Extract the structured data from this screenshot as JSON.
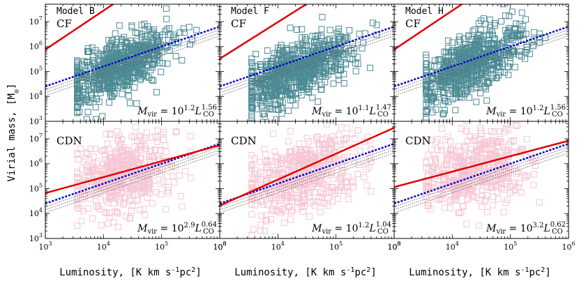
{
  "figure": {
    "ylabel_prefix": "Virial mass, [M",
    "ylabel_sub": "⊙",
    "ylabel_suffix": "]",
    "xlabel_prefix": "Luminosity, [K km s",
    "xlabel_sup1": "-1",
    "xlabel_mid": "pc",
    "xlabel_sup2": "2",
    "xlabel_suffix": "]"
  },
  "chart_data": [
    {
      "type": "scatter",
      "title": "Model B",
      "tag": "CF",
      "series_color": "#4d8a94",
      "fit": {
        "intercept": 1.2,
        "slope": 1.56,
        "label_pre": "M",
        "label_sub": "vir",
        "label_eq": " = 10",
        "label_exp": "1.2",
        "label_L": "L",
        "label_Lsub": "CO",
        "label_Lsup": "1.56"
      },
      "xlim": [
        1000,
        1000000
      ],
      "ylim": [
        1000,
        50000000
      ],
      "xticks": [
        "10",
        "10",
        "10",
        "10"
      ],
      "xtick_exps": [
        "3",
        "4",
        "5",
        "6"
      ],
      "yticks": [
        "10",
        "10",
        "10",
        "10",
        "10"
      ],
      "ytick_exps": [
        "3",
        "4",
        "5",
        "6",
        "7"
      ],
      "cloud": {
        "x_center": 4.25,
        "x_spread": 0.45,
        "y_center": 5.2,
        "y_spread": 0.55,
        "slope": 1.1,
        "x_min": 3.55,
        "x_max": 5.6,
        "count": 700
      }
    },
    {
      "type": "scatter",
      "title": "Model F",
      "tag": "CF",
      "series_color": "#4d8a94",
      "fit": {
        "intercept": 1.1,
        "slope": 1.47,
        "label_pre": "M",
        "label_sub": "vir",
        "label_eq": " = 10",
        "label_exp": "1.1",
        "label_L": "L",
        "label_Lsub": "CO",
        "label_Lsup": "1.47"
      },
      "xlim": [
        1000,
        1000000
      ],
      "ylim": [
        1000,
        50000000
      ],
      "xticks": [
        "10",
        "10",
        "10",
        "10"
      ],
      "xtick_exps": [
        "3",
        "4",
        "5",
        "6"
      ],
      "yticks": [
        "10",
        "10",
        "10",
        "10",
        "10"
      ],
      "ytick_exps": [
        "3",
        "4",
        "5",
        "6",
        "7"
      ],
      "cloud": {
        "x_center": 4.3,
        "x_spread": 0.5,
        "y_center": 5.0,
        "y_spread": 0.55,
        "slope": 1.0,
        "x_min": 3.55,
        "x_max": 5.7,
        "count": 750
      }
    },
    {
      "type": "scatter",
      "title": "Model H",
      "tag": "CF",
      "series_color": "#4d8a94",
      "fit": {
        "intercept": 1.2,
        "slope": 1.56,
        "label_pre": "M",
        "label_sub": "vir",
        "label_eq": " = 10",
        "label_exp": "1.2",
        "label_L": "L",
        "label_Lsub": "CO",
        "label_Lsup": "1.56"
      },
      "xlim": [
        1000,
        1000000
      ],
      "ylim": [
        1000,
        50000000
      ],
      "xticks": [
        "10",
        "10",
        "10",
        "10"
      ],
      "xtick_exps": [
        "3",
        "4",
        "5",
        "6"
      ],
      "yticks": [
        "10",
        "10",
        "10",
        "10",
        "10"
      ],
      "ytick_exps": [
        "3",
        "4",
        "5",
        "6",
        "7"
      ],
      "cloud": {
        "x_center": 4.3,
        "x_spread": 0.45,
        "y_center": 5.25,
        "y_spread": 0.55,
        "slope": 1.1,
        "x_min": 3.55,
        "x_max": 5.6,
        "count": 700
      }
    },
    {
      "type": "scatter",
      "title": "",
      "tag": "CDN",
      "series_color": "#f6c6d3",
      "fit": {
        "intercept": 2.9,
        "slope": 0.64,
        "label_pre": "M",
        "label_sub": "vir",
        "label_eq": " = 10",
        "label_exp": "2.9",
        "label_L": "L",
        "label_Lsub": "CO",
        "label_Lsup": "0.64"
      },
      "xlim": [
        1000,
        1000000
      ],
      "ylim": [
        1000,
        50000000
      ],
      "xticks": [
        "10",
        "10",
        "10",
        "10"
      ],
      "xtick_exps": [
        "3",
        "4",
        "5",
        "6"
      ],
      "yticks": [
        "10",
        "10",
        "10",
        "10",
        "10"
      ],
      "ytick_exps": [
        "3",
        "4",
        "5",
        "6",
        "7"
      ],
      "cloud": {
        "x_center": 4.35,
        "x_spread": 0.45,
        "y_center": 5.6,
        "y_spread": 0.75,
        "slope": 0.5,
        "x_min": 3.55,
        "x_max": 5.5,
        "count": 500
      }
    },
    {
      "type": "scatter",
      "title": "",
      "tag": "CDN",
      "series_color": "#f6c6d3",
      "fit": {
        "intercept": 1.2,
        "slope": 1.04,
        "label_pre": "M",
        "label_sub": "vir",
        "label_eq": " = 10",
        "label_exp": "1.2",
        "label_L": "L",
        "label_Lsub": "CO",
        "label_Lsup": "1.04"
      },
      "xlim": [
        1000,
        1000000
      ],
      "ylim": [
        1000,
        50000000
      ],
      "xticks": [
        "10",
        "10",
        "10",
        "10"
      ],
      "xtick_exps": [
        "3",
        "4",
        "5",
        "6"
      ],
      "yticks": [
        "10",
        "10",
        "10",
        "10",
        "10"
      ],
      "ytick_exps": [
        "3",
        "4",
        "5",
        "6",
        "7"
      ],
      "cloud": {
        "x_center": 4.4,
        "x_spread": 0.5,
        "y_center": 5.5,
        "y_spread": 0.75,
        "slope": 0.7,
        "x_min": 3.55,
        "x_max": 5.6,
        "count": 500
      }
    },
    {
      "type": "scatter",
      "title": "",
      "tag": "CDN",
      "series_color": "#f6c6d3",
      "fit": {
        "intercept": 3.2,
        "slope": 0.62,
        "label_pre": "M",
        "label_sub": "vir",
        "label_eq": " = 10",
        "label_exp": "3.2",
        "label_L": "L",
        "label_Lsub": "CO",
        "label_Lsup": "0.62"
      },
      "xlim": [
        1000,
        1000000
      ],
      "ylim": [
        1000,
        50000000
      ],
      "xticks": [
        "10",
        "10",
        "10",
        "10"
      ],
      "xtick_exps": [
        "3",
        "4",
        "5",
        "6"
      ],
      "yticks": [
        "10",
        "10",
        "10",
        "10",
        "10"
      ],
      "ytick_exps": [
        "3",
        "4",
        "5",
        "6",
        "7"
      ],
      "cloud": {
        "x_center": 4.35,
        "x_spread": 0.45,
        "y_center": 5.7,
        "y_spread": 0.75,
        "slope": 0.5,
        "x_min": 3.55,
        "x_max": 5.5,
        "count": 500
      }
    }
  ],
  "reference_lines": {
    "blue_intercept": 2.0,
    "blue_slope": 0.8,
    "blue_color": "#0000cc",
    "gray_intercept": 1.75,
    "gray_slope": 0.8,
    "gray_color": "#555555",
    "fit_color": "#e00000"
  }
}
